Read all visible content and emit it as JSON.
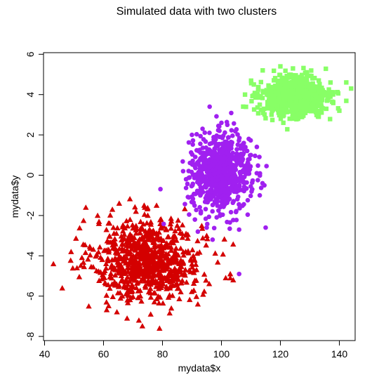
{
  "chart_data": {
    "type": "scatter",
    "title": "Simulated data with two clusters",
    "xlabel": "mydata$x",
    "ylabel": "mydata$y",
    "xlim": [
      40,
      150
    ],
    "ylim": [
      -8,
      6
    ],
    "x_ticks": [
      40,
      60,
      80,
      100,
      120,
      140
    ],
    "y_ticks": [
      -8,
      -6,
      -4,
      -2,
      0,
      2,
      4,
      6
    ],
    "grid": false,
    "legend": "none",
    "series": [
      {
        "marker": "triangle",
        "color": "#d40000",
        "count": 800,
        "center": [
          75,
          -4.2
        ],
        "spread": [
          9,
          1.0
        ],
        "points": [
          [
            43,
            -4.4
          ],
          [
            46,
            -5.6
          ],
          [
            54,
            -1.6
          ],
          [
            58,
            -2.0
          ],
          [
            63,
            -1.7
          ],
          [
            69,
            -2.2
          ],
          [
            71,
            -1.8
          ],
          [
            74,
            -1.6
          ],
          [
            78,
            -1.5
          ],
          [
            85,
            -2.5
          ],
          [
            88,
            -2.9
          ],
          [
            55,
            -6.5
          ],
          [
            61,
            -6.3
          ],
          [
            68,
            -7.1
          ],
          [
            72,
            -7.2
          ],
          [
            76,
            -6.9
          ],
          [
            79,
            -7.6
          ],
          [
            83,
            -6.6
          ],
          [
            92,
            -6.4
          ],
          [
            103,
            -4.9
          ],
          [
            104,
            -5.2
          ],
          [
            103,
            -5.1
          ],
          [
            95,
            -3.0
          ],
          [
            51,
            -4.6
          ],
          [
            49,
            -3.8
          ]
        ]
      },
      {
        "marker": "circle",
        "color": "#a020f0",
        "count": 800,
        "center": [
          100,
          0.1
        ],
        "spread": [
          5,
          0.9
        ],
        "points": [
          [
            96,
            3.4
          ],
          [
            100,
            2.6
          ],
          [
            102,
            2.5
          ],
          [
            90,
            2.0
          ],
          [
            107,
            1.5
          ],
          [
            88,
            -0.2
          ],
          [
            87,
            0.2
          ],
          [
            113,
            -1.0
          ],
          [
            112,
            0.1
          ],
          [
            91,
            -2.2
          ],
          [
            95,
            -2.6
          ],
          [
            97,
            -3.2
          ],
          [
            106,
            -2.7
          ],
          [
            115,
            -2.6
          ],
          [
            106,
            -4.9
          ],
          [
            92,
            -2.8
          ],
          [
            110,
            1.0
          ]
        ]
      },
      {
        "marker": "square",
        "color": "#88ff66",
        "count": 800,
        "center": [
          125,
          3.9
        ],
        "spread": [
          5.5,
          0.5
        ],
        "points": [
          [
            108,
            4.0
          ],
          [
            111,
            4.5
          ],
          [
            114,
            5.2
          ],
          [
            120,
            5.4
          ],
          [
            129,
            5.0
          ],
          [
            137,
            4.6
          ],
          [
            144,
            4.3
          ],
          [
            146,
            4.2
          ],
          [
            140,
            3.2
          ],
          [
            133,
            2.9
          ],
          [
            121,
            2.6
          ],
          [
            117,
            3.0
          ],
          [
            126,
            2.8
          ],
          [
            113,
            3.5
          ]
        ]
      }
    ]
  }
}
